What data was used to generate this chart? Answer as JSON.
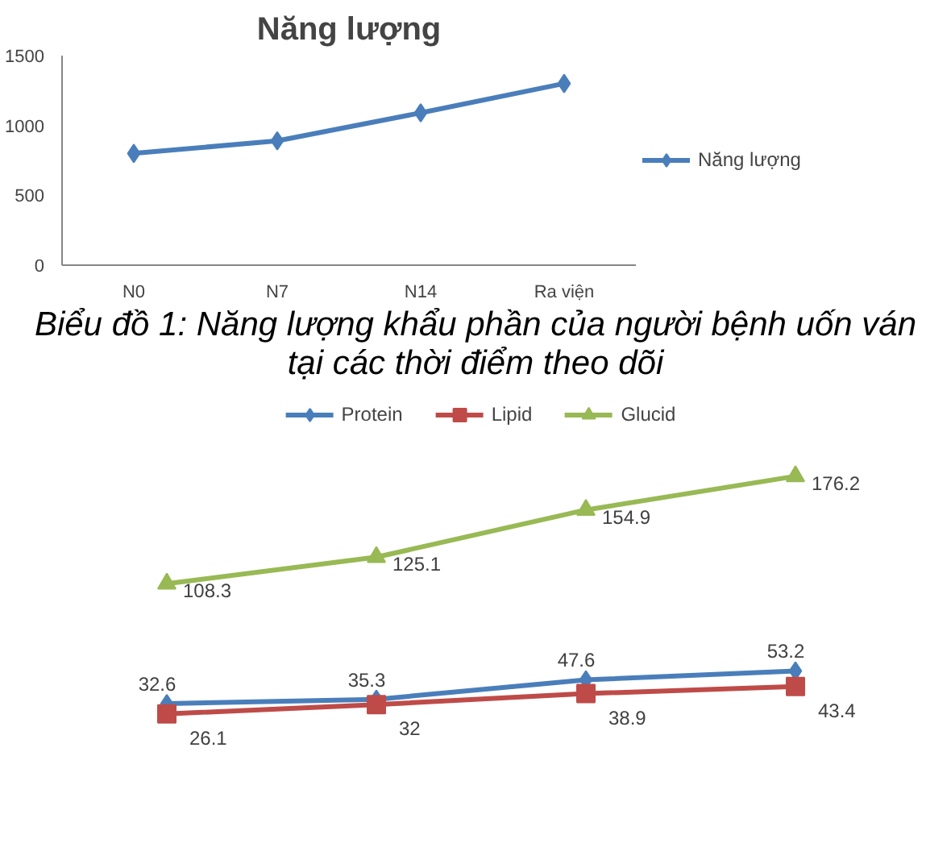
{
  "chart_data": [
    {
      "type": "line",
      "title": "Năng lượng",
      "categories": [
        "N0",
        "N7",
        "N14",
        "Ra viện"
      ],
      "series": [
        {
          "name": "Năng lượng",
          "color": "#4a7ebb",
          "values": [
            800,
            890,
            1090,
            1300
          ]
        }
      ],
      "ylim": [
        0,
        1500
      ],
      "yticks": [
        0,
        500,
        1000,
        1500
      ],
      "grid": false,
      "legend": "right",
      "marker": "diamond",
      "annotations": [
        "Biểu đồ 1: Năng lượng khẩu phần của người bệnh uốn ván tại các thời điểm theo dõi"
      ]
    },
    {
      "type": "line",
      "categories": [
        null,
        null,
        null,
        null
      ],
      "tick_labels": false,
      "data_labels": true,
      "legend": "top",
      "grid": false,
      "series": [
        {
          "name": "Protein",
          "color": "#4a7ebb",
          "marker": "diamond",
          "values": [
            32.6,
            35.3,
            47.6,
            53.2
          ]
        },
        {
          "name": "Lipid",
          "color": "#be4b48",
          "marker": "square",
          "values": [
            26.1,
            32,
            38.9,
            43.4
          ]
        },
        {
          "name": "Glucid",
          "color": "#98b954",
          "marker": "triangle",
          "values": [
            108.3,
            125.1,
            154.9,
            176.2
          ]
        }
      ]
    }
  ]
}
